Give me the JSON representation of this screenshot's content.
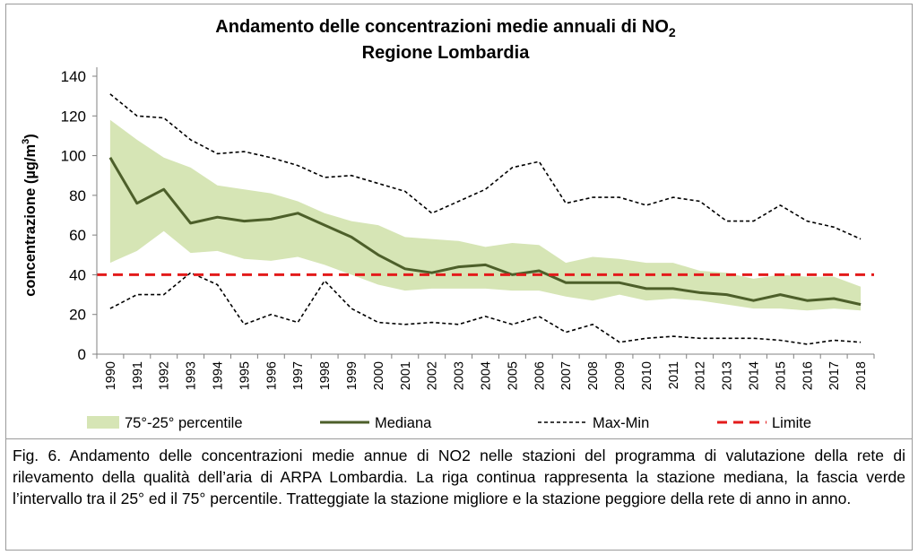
{
  "chart_data": {
    "type": "line",
    "title": "Andamento delle concentrazioni medie annuali di NO",
    "title_subscript": "2",
    "subtitle": "Regione Lombardia",
    "ylabel": "concentrazione (µg/m",
    "ylabel_superscript": "3",
    "ylabel_suffix": ")",
    "xlabel": "",
    "ylim": [
      0,
      140
    ],
    "yticks": [
      0,
      20,
      40,
      60,
      80,
      100,
      120,
      140
    ],
    "grid": false,
    "legend_position": "bottom",
    "x": [
      "1990",
      "1991",
      "1992",
      "1993",
      "1994",
      "1995",
      "1996",
      "1997",
      "1998",
      "1999",
      "2000",
      "2001",
      "2002",
      "2003",
      "2004",
      "2005",
      "2006",
      "2007",
      "2008",
      "2009",
      "2010",
      "2011",
      "2012",
      "2013",
      "2014",
      "2015",
      "2016",
      "2017",
      "2018"
    ],
    "band": {
      "name": "75°-25° percentile",
      "color": "#d6e5b5",
      "upper": [
        118,
        108,
        99,
        94,
        85,
        83,
        81,
        77,
        71,
        67,
        65,
        59,
        58,
        57,
        54,
        56,
        55,
        46,
        49,
        48,
        46,
        46,
        42,
        41,
        38,
        40,
        39,
        39,
        34
      ],
      "lower": [
        46,
        52,
        62,
        51,
        52,
        48,
        47,
        49,
        45,
        40,
        35,
        32,
        33,
        33,
        33,
        32,
        32,
        29,
        27,
        30,
        27,
        28,
        27,
        25,
        23,
        23,
        22,
        23,
        22
      ]
    },
    "series": [
      {
        "name": "Mediana",
        "color": "#4d5f2a",
        "style": "solid",
        "values": [
          99,
          76,
          83,
          66,
          69,
          67,
          68,
          71,
          65,
          59,
          50,
          43,
          41,
          44,
          45,
          40,
          42,
          36,
          36,
          36,
          33,
          33,
          31,
          30,
          27,
          30,
          27,
          28,
          25
        ]
      },
      {
        "name": "Max",
        "color": "#000000",
        "style": "dotted",
        "values": [
          131,
          120,
          119,
          108,
          101,
          102,
          99,
          95,
          89,
          90,
          86,
          82,
          71,
          77,
          83,
          94,
          97,
          76,
          79,
          79,
          75,
          79,
          77,
          67,
          67,
          75,
          67,
          64,
          58
        ]
      },
      {
        "name": "Min",
        "color": "#000000",
        "style": "dotted",
        "values": [
          23,
          30,
          30,
          41,
          35,
          15,
          20,
          16,
          37,
          23,
          16,
          15,
          16,
          15,
          19,
          15,
          19,
          11,
          15,
          6,
          8,
          9,
          8,
          8,
          8,
          7,
          5,
          7,
          6
        ]
      },
      {
        "name": "Limite",
        "color": "#e31b1b",
        "style": "dashed",
        "values": [
          40,
          40,
          40,
          40,
          40,
          40,
          40,
          40,
          40,
          40,
          40,
          40,
          40,
          40,
          40,
          40,
          40,
          40,
          40,
          40,
          40,
          40,
          40,
          40,
          40,
          40,
          40,
          40,
          40
        ]
      }
    ],
    "legend": [
      {
        "label": "75°-25° percentile",
        "kind": "band"
      },
      {
        "label": "Mediana",
        "kind": "solid"
      },
      {
        "label": "Max-Min",
        "kind": "dotted"
      },
      {
        "label": "Limite",
        "kind": "dashed"
      }
    ]
  },
  "caption": "Fig. 6. Andamento delle concentrazioni medie annue di NO2 nelle stazioni del programma di valutazione della rete di rilevamento della qualità dell’aria di ARPA Lombardia. La riga continua rappresenta la stazione mediana, la fascia verde l’intervallo tra il 25° ed il 75° percentile. Tratteggiate la stazione migliore e la stazione peggiore della rete di anno in anno."
}
